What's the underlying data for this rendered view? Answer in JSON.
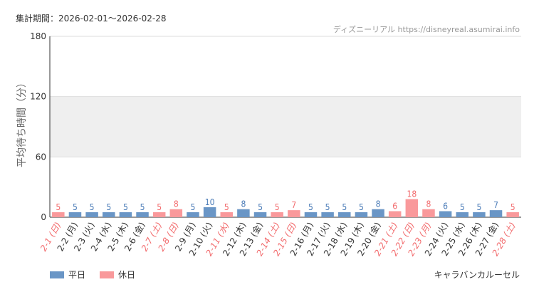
{
  "header": {
    "period_label": "集計期間：2026-02-01〜2026-02-28",
    "credit": "ディズニーリアル https://disneyreal.asumirai.info"
  },
  "footer": {
    "attraction": "キャラバンカルーセル"
  },
  "colors": {
    "weekday": "#6a96c6",
    "holiday": "#f9999b",
    "weekday_label": "#4a7bb7",
    "holiday_label": "#f26b6d",
    "band": "#efefef",
    "grid": "#dddddd",
    "axis": "#333333"
  },
  "chart_data": {
    "type": "bar",
    "title": "",
    "xlabel": "",
    "ylabel": "平均待ち時間（分）",
    "ylim": [
      0,
      180
    ],
    "yticks": [
      0,
      60,
      120,
      180
    ],
    "shaded_band": [
      60,
      120
    ],
    "grid": true,
    "legend_position": "bottom-left",
    "legend": [
      {
        "name": "平日",
        "key": "weekday"
      },
      {
        "name": "休日",
        "key": "holiday"
      }
    ],
    "categories": [
      "2-1 (日)",
      "2-2 (月)",
      "2-3 (火)",
      "2-4 (水)",
      "2-5 (木)",
      "2-6 (金)",
      "2-7 (土)",
      "2-8 (日)",
      "2-9 (月)",
      "2-10 (火)",
      "2-11 (水)",
      "2-12 (木)",
      "2-13 (金)",
      "2-14 (土)",
      "2-15 (日)",
      "2-16 (月)",
      "2-17 (火)",
      "2-18 (水)",
      "2-19 (木)",
      "2-20 (金)",
      "2-21 (土)",
      "2-22 (日)",
      "2-23 (月)",
      "2-24 (火)",
      "2-25 (水)",
      "2-26 (木)",
      "2-27 (金)",
      "2-28 (土)"
    ],
    "values": [
      5,
      5,
      5,
      5,
      5,
      5,
      5,
      8,
      5,
      10,
      5,
      8,
      5,
      5,
      7,
      5,
      5,
      5,
      5,
      8,
      6,
      18,
      8,
      6,
      5,
      5,
      7,
      5
    ],
    "day_type": [
      "holiday",
      "weekday",
      "weekday",
      "weekday",
      "weekday",
      "weekday",
      "holiday",
      "holiday",
      "weekday",
      "weekday",
      "holiday",
      "weekday",
      "weekday",
      "holiday",
      "holiday",
      "weekday",
      "weekday",
      "weekday",
      "weekday",
      "weekday",
      "holiday",
      "holiday",
      "holiday",
      "weekday",
      "weekday",
      "weekday",
      "weekday",
      "holiday"
    ]
  }
}
